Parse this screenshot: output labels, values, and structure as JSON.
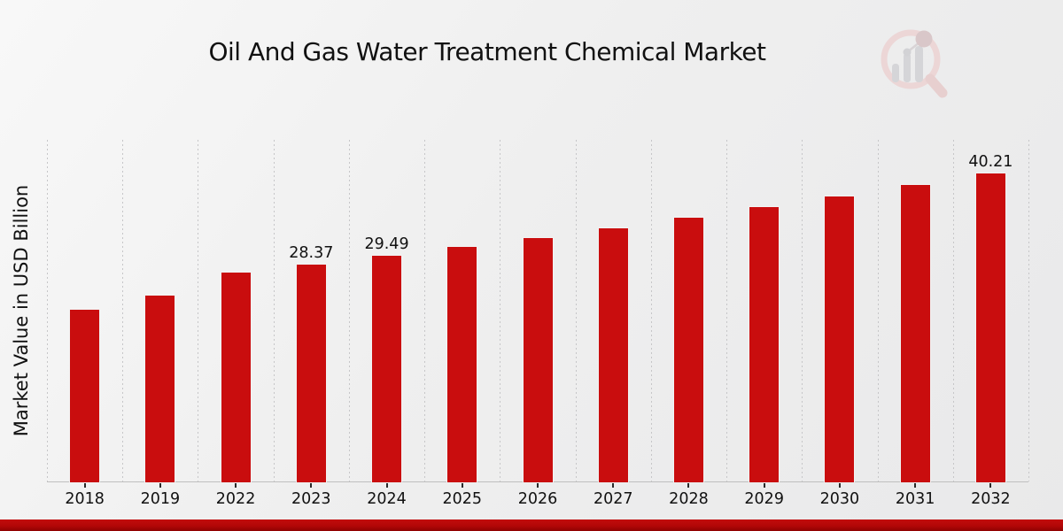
{
  "page": {
    "title": "Oil And Gas Water Treatment Chemical Market"
  },
  "chart_data": {
    "type": "bar",
    "title": "Oil And Gas Water Treatment Chemical Market",
    "xlabel": "",
    "ylabel": "Market Value in USD Billion",
    "categories": [
      "2018",
      "2019",
      "2022",
      "2023",
      "2024",
      "2025",
      "2026",
      "2027",
      "2028",
      "2029",
      "2030",
      "2031",
      "2032"
    ],
    "values": [
      22.5,
      24.3,
      27.29,
      28.37,
      29.49,
      30.65,
      31.86,
      33.12,
      34.43,
      35.79,
      37.2,
      38.67,
      40.21
    ],
    "data_labels": {
      "2023": "28.37",
      "2024": "29.49",
      "2032": "40.21"
    },
    "ylim": [
      0,
      44.45
    ],
    "grid": "vertical-dotted",
    "legend": "none",
    "bar_color": "#c90d0e",
    "bar_edge_color": "#f2f2f2",
    "gridline_color": "#c6c6c8",
    "text_color": "#111111",
    "footer_banner_color": "#b30707",
    "logo_icon": "magnifier-bar-chart-icon"
  }
}
